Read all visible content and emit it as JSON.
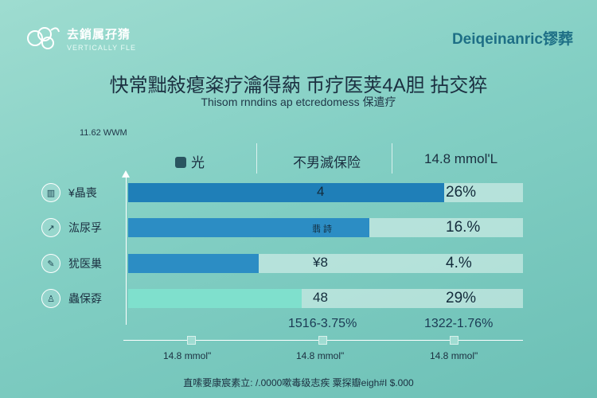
{
  "logo": {
    "name": "去銷属孖猜",
    "sub": "VERTICALLY  FLE"
  },
  "brand": "Deiqeinanric镠葬",
  "title": "快常黜敍瘪粢疗瀹得蒳 币疗医荚4A胆 拈交猝",
  "subtitle": "Thisom rnndins ap etcredomess  保遣疗",
  "unit_label": "11.62 WWM",
  "headers": {
    "col1": "光",
    "col2": "不男滅保险",
    "col3": "14.8 mmol'L"
  },
  "range_labels": {
    "left": "1516-3.75%",
    "right": "1322-1.76%"
  },
  "bottom_labels": [
    "14.8 mmol\"",
    "14.8 mmol\"",
    "14.8 mmol\""
  ],
  "footer": "直嗦要康宸素立: /.0000嗽毒级志疾 粟探瓣eigh#I $.000",
  "colors": {
    "bar_dark": "#1f7fb8",
    "bar_mid": "#2c8dc4",
    "bar_light": "#7fe0cd",
    "track": "#e6f5f1"
  },
  "chart_data": {
    "type": "bar",
    "orientation": "horizontal",
    "categories": [
      "¥晶喪",
      "汯尿孚",
      "犹医巢",
      "蟲保孬"
    ],
    "bar_labels": [
      "4",
      "翡 詩",
      "¥8",
      "48"
    ],
    "percent_labels": [
      "26%",
      "16.%",
      "4.%",
      "29%"
    ],
    "values": [
      80,
      61,
      33,
      44
    ],
    "ylim": [
      0,
      100
    ],
    "grid": false
  }
}
